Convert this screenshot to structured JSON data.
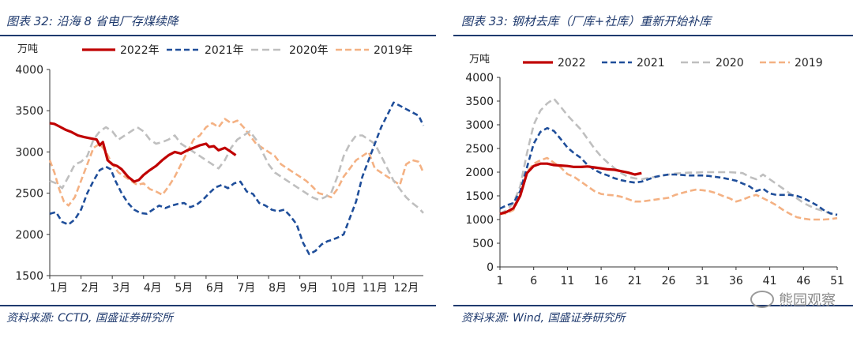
{
  "left": {
    "title": "图表 32:  沿海 8 省电厂存煤续降",
    "source": "资料来源:  CCTD,  国盛证券研究所",
    "chart_data": {
      "type": "line",
      "unit": "万吨",
      "ylim": [
        1500,
        4000
      ],
      "yticks": [
        "1500",
        "2000",
        "2500",
        "3000",
        "3500",
        "4000"
      ],
      "xlim": [
        1,
        12.95
      ],
      "xtick_labels": [
        "1月",
        "2月",
        "3月",
        "4月",
        "5月",
        "6月",
        "7月",
        "8月",
        "9月",
        "10月",
        "11月",
        "12月"
      ],
      "series": [
        {
          "name": "2022年",
          "color": "#c00000",
          "dash": "",
          "width": 3.2,
          "x": [
            1,
            1.15,
            1.3,
            1.5,
            1.7,
            1.9,
            2.1,
            2.3,
            2.5,
            2.6,
            2.7,
            2.85,
            3.0,
            3.15,
            3.3,
            3.5,
            3.7,
            3.85,
            4.0,
            4.2,
            4.4,
            4.6,
            4.8,
            5.0,
            5.2,
            5.4,
            5.6,
            5.8,
            6.0,
            6.1,
            6.25,
            6.4,
            6.6,
            6.8,
            6.95
          ],
          "y": [
            3350,
            3340,
            3310,
            3270,
            3240,
            3200,
            3180,
            3165,
            3150,
            3080,
            3120,
            2900,
            2850,
            2830,
            2790,
            2700,
            2640,
            2660,
            2720,
            2780,
            2830,
            2900,
            2960,
            3000,
            2980,
            3020,
            3050,
            3080,
            3100,
            3060,
            3070,
            3020,
            3050,
            3000,
            2960
          ]
        },
        {
          "name": "2021年",
          "color": "#1f4e9a",
          "dash": "7,4",
          "width": 2.6,
          "x": [
            1,
            1.2,
            1.4,
            1.6,
            1.8,
            2.0,
            2.2,
            2.4,
            2.6,
            2.8,
            2.95,
            3.1,
            3.3,
            3.5,
            3.7,
            3.9,
            4.1,
            4.3,
            4.5,
            4.7,
            4.9,
            5.1,
            5.3,
            5.5,
            5.7,
            5.9,
            6.1,
            6.3,
            6.5,
            6.7,
            6.9,
            7.1,
            7.3,
            7.5,
            7.7,
            7.9,
            8.1,
            8.3,
            8.5,
            8.7,
            8.9,
            9.1,
            9.3,
            9.5,
            9.7,
            9.8,
            9.9,
            10.0,
            10.2,
            10.4,
            10.6,
            10.8,
            11.0,
            11.2,
            11.4,
            11.6,
            11.8,
            12.0,
            12.2,
            12.4,
            12.6,
            12.8,
            12.95
          ],
          "y": [
            2250,
            2270,
            2150,
            2120,
            2180,
            2300,
            2500,
            2650,
            2780,
            2820,
            2790,
            2650,
            2500,
            2380,
            2300,
            2260,
            2250,
            2300,
            2350,
            2320,
            2350,
            2370,
            2380,
            2330,
            2360,
            2420,
            2500,
            2570,
            2600,
            2560,
            2620,
            2640,
            2520,
            2490,
            2380,
            2350,
            2300,
            2280,
            2300,
            2220,
            2120,
            1900,
            1760,
            1800,
            1880,
            1900,
            1920,
            1930,
            1960,
            2000,
            2200,
            2400,
            2700,
            2900,
            3100,
            3300,
            3450,
            3600,
            3560,
            3520,
            3480,
            3440,
            3320
          ]
        },
        {
          "name": "2020年",
          "color": "#bfbfbf",
          "dash": "9,5",
          "width": 2.6,
          "x": [
            1,
            1.2,
            1.4,
            1.6,
            1.8,
            2.0,
            2.2,
            2.4,
            2.6,
            2.8,
            3.0,
            3.2,
            3.4,
            3.6,
            3.8,
            4.0,
            4.2,
            4.4,
            4.6,
            4.8,
            5.0,
            5.2,
            5.4,
            5.6,
            5.8,
            6.0,
            6.2,
            6.4,
            6.6,
            6.8,
            7.0,
            7.2,
            7.4,
            7.6,
            7.8,
            8.0,
            8.2,
            8.4,
            8.6,
            8.8,
            9.0,
            9.2,
            9.4,
            9.6,
            9.8,
            10.0,
            10.2,
            10.4,
            10.6,
            10.8,
            11.0,
            11.2,
            11.4,
            11.6,
            11.8,
            12.0,
            12.2,
            12.4,
            12.6,
            12.8,
            12.95
          ],
          "y": [
            2650,
            2620,
            2560,
            2700,
            2850,
            2880,
            2950,
            3150,
            3250,
            3300,
            3250,
            3150,
            3200,
            3250,
            3300,
            3250,
            3150,
            3100,
            3120,
            3150,
            3200,
            3100,
            3050,
            3000,
            2950,
            2900,
            2850,
            2800,
            2900,
            3050,
            3150,
            3200,
            3250,
            3150,
            3000,
            2850,
            2750,
            2700,
            2650,
            2600,
            2550,
            2500,
            2450,
            2420,
            2450,
            2500,
            2700,
            2950,
            3100,
            3200,
            3200,
            3150,
            3100,
            2950,
            2800,
            2650,
            2550,
            2450,
            2380,
            2320,
            2260
          ]
        },
        {
          "name": "2019年",
          "color": "#f4b183",
          "dash": "8,4",
          "width": 2.6,
          "x": [
            1,
            1.15,
            1.3,
            1.45,
            1.6,
            1.8,
            2.0,
            2.2,
            2.4,
            2.6,
            2.8,
            3.0,
            3.2,
            3.4,
            3.6,
            3.8,
            4.0,
            4.2,
            4.4,
            4.6,
            4.8,
            5.0,
            5.2,
            5.4,
            5.6,
            5.8,
            6.0,
            6.2,
            6.4,
            6.6,
            6.8,
            7.0,
            7.2,
            7.4,
            7.6,
            7.8,
            8.0,
            8.2,
            8.4,
            8.6,
            8.8,
            9.0,
            9.2,
            9.4,
            9.6,
            9.8,
            10.0,
            10.2,
            10.4,
            10.6,
            10.8,
            11.0,
            11.2,
            11.4,
            11.6,
            11.8,
            12.0,
            12.2,
            12.4,
            12.6,
            12.8,
            12.95
          ],
          "y": [
            2900,
            2750,
            2550,
            2400,
            2350,
            2450,
            2650,
            2850,
            3050,
            3100,
            3000,
            2850,
            2750,
            2700,
            2650,
            2600,
            2620,
            2550,
            2520,
            2480,
            2580,
            2700,
            2850,
            3000,
            3150,
            3200,
            3300,
            3350,
            3300,
            3400,
            3350,
            3380,
            3300,
            3200,
            3100,
            3050,
            3000,
            2950,
            2850,
            2800,
            2750,
            2700,
            2650,
            2580,
            2500,
            2480,
            2450,
            2550,
            2700,
            2800,
            2900,
            2950,
            3000,
            2800,
            2750,
            2700,
            2650,
            2600,
            2850,
            2900,
            2880,
            2750
          ]
        }
      ]
    }
  },
  "right": {
    "title": "图表 33:  钢材去库（厂库+社库）重新开始补库",
    "source": "资料来源:  Wind,  国盛证券研究所",
    "watermark": "熊园观察",
    "chart_data": {
      "type": "line",
      "unit": "万吨",
      "ylim": [
        0,
        4000
      ],
      "yticks": [
        "0",
        "500",
        "1000",
        "1500",
        "2000",
        "2500",
        "3000",
        "3500",
        "4000"
      ],
      "xlim": [
        1,
        51
      ],
      "xticks": [
        "1",
        "6",
        "11",
        "16",
        "21",
        "26",
        "31",
        "36",
        "41",
        "46",
        "51"
      ],
      "series": [
        {
          "name": "2022",
          "color": "#c00000",
          "dash": "",
          "width": 3.2,
          "x": [
            1,
            2,
            3,
            4,
            5,
            6,
            7,
            8,
            9,
            10,
            11,
            12,
            13,
            14,
            15,
            16,
            17,
            18,
            19,
            20,
            21,
            22
          ],
          "y": [
            1120,
            1160,
            1240,
            1500,
            1980,
            2130,
            2180,
            2180,
            2150,
            2140,
            2130,
            2110,
            2110,
            2120,
            2100,
            2080,
            2060,
            2050,
            2020,
            1990,
            1950,
            1980
          ]
        },
        {
          "name": "2021",
          "color": "#1f4e9a",
          "dash": "7,4",
          "width": 2.6,
          "x": [
            1,
            2,
            3,
            4,
            5,
            6,
            7,
            8,
            9,
            10,
            11,
            12,
            13,
            14,
            15,
            16,
            17,
            18,
            19,
            20,
            21,
            22,
            23,
            24,
            25,
            26,
            27,
            28,
            29,
            30,
            31,
            32,
            33,
            34,
            35,
            36,
            37,
            38,
            39,
            40,
            41,
            42,
            43,
            44,
            45,
            46,
            47,
            48,
            49,
            50,
            51
          ],
          "y": [
            1230,
            1300,
            1350,
            1600,
            2100,
            2600,
            2850,
            2930,
            2870,
            2700,
            2520,
            2400,
            2300,
            2150,
            2050,
            1980,
            1930,
            1870,
            1830,
            1800,
            1780,
            1800,
            1850,
            1900,
            1930,
            1950,
            1950,
            1940,
            1930,
            1930,
            1930,
            1920,
            1900,
            1880,
            1850,
            1820,
            1760,
            1700,
            1600,
            1650,
            1550,
            1520,
            1520,
            1520,
            1500,
            1450,
            1380,
            1300,
            1200,
            1130,
            1100
          ]
        },
        {
          "name": "2020",
          "color": "#bfbfbf",
          "dash": "9,5",
          "width": 2.6,
          "x": [
            1,
            2,
            3,
            4,
            5,
            6,
            7,
            8,
            9,
            10,
            11,
            12,
            13,
            14,
            15,
            16,
            17,
            18,
            19,
            20,
            21,
            22,
            23,
            24,
            25,
            26,
            27,
            28,
            29,
            30,
            31,
            32,
            33,
            34,
            35,
            36,
            37,
            38,
            39,
            40,
            41,
            42,
            43,
            44,
            45,
            46,
            47,
            48,
            49,
            50,
            51
          ],
          "y": [
            1120,
            1200,
            1350,
            1700,
            2400,
            3000,
            3300,
            3450,
            3550,
            3380,
            3200,
            3050,
            2900,
            2700,
            2500,
            2330,
            2200,
            2080,
            1980,
            1900,
            1870,
            1850,
            1880,
            1900,
            1920,
            1950,
            1970,
            1980,
            1990,
            1990,
            2000,
            2000,
            2000,
            2000,
            2000,
            1990,
            1980,
            1900,
            1850,
            1950,
            1850,
            1750,
            1650,
            1550,
            1450,
            1350,
            1280,
            1220,
            1180,
            1120,
            1100
          ]
        },
        {
          "name": "2019",
          "color": "#f4b183",
          "dash": "8,4",
          "width": 2.6,
          "x": [
            1,
            2,
            3,
            4,
            5,
            6,
            7,
            8,
            9,
            10,
            11,
            12,
            13,
            14,
            15,
            16,
            17,
            18,
            19,
            20,
            21,
            22,
            23,
            24,
            25,
            26,
            27,
            28,
            29,
            30,
            31,
            32,
            33,
            34,
            35,
            36,
            37,
            38,
            39,
            40,
            41,
            42,
            43,
            44,
            45,
            46,
            47,
            48,
            49,
            50,
            51
          ],
          "y": [
            1120,
            1130,
            1200,
            1500,
            2000,
            2180,
            2250,
            2300,
            2200,
            2100,
            1960,
            1900,
            1800,
            1700,
            1600,
            1540,
            1520,
            1510,
            1480,
            1430,
            1380,
            1380,
            1400,
            1420,
            1440,
            1460,
            1520,
            1560,
            1600,
            1630,
            1620,
            1600,
            1560,
            1500,
            1450,
            1380,
            1420,
            1480,
            1520,
            1450,
            1380,
            1300,
            1200,
            1120,
            1050,
            1020,
            1000,
            1000,
            1000,
            1010,
            1030
          ]
        }
      ]
    }
  }
}
